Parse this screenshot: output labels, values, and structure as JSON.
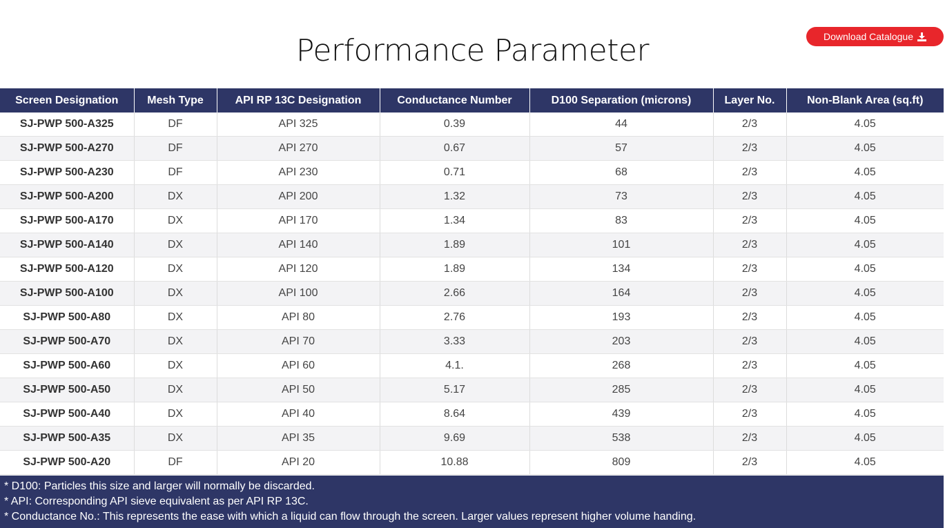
{
  "page": {
    "title": "Performance Parameter"
  },
  "download": {
    "label": "Download Catalogue",
    "icon": "download-icon",
    "color": "#e8262b"
  },
  "colors": {
    "header_bg": "#2e3666",
    "stripe_bg": "#f3f3f5"
  },
  "table": {
    "headers": [
      "Screen Designation",
      "Mesh Type",
      "API RP 13C Designation",
      "Conductance Number",
      "D100 Separation (microns)",
      "Layer No.",
      "Non-Blank Area (sq.ft)"
    ],
    "rows": [
      [
        "SJ-PWP 500-A325",
        "DF",
        "API 325",
        "0.39",
        "44",
        "2/3",
        "4.05"
      ],
      [
        "SJ-PWP 500-A270",
        "DF",
        "API 270",
        "0.67",
        "57",
        "2/3",
        "4.05"
      ],
      [
        "SJ-PWP 500-A230",
        "DF",
        "API 230",
        "0.71",
        "68",
        "2/3",
        "4.05"
      ],
      [
        "SJ-PWP 500-A200",
        "DX",
        "API 200",
        "1.32",
        "73",
        "2/3",
        "4.05"
      ],
      [
        "SJ-PWP 500-A170",
        "DX",
        "API 170",
        "1.34",
        "83",
        "2/3",
        "4.05"
      ],
      [
        "SJ-PWP 500-A140",
        "DX",
        "API 140",
        "1.89",
        "101",
        "2/3",
        "4.05"
      ],
      [
        "SJ-PWP 500-A120",
        "DX",
        "API 120",
        "1.89",
        "134",
        "2/3",
        "4.05"
      ],
      [
        "SJ-PWP 500-A100",
        "DX",
        "API 100",
        "2.66",
        "164",
        "2/3",
        "4.05"
      ],
      [
        "SJ-PWP 500-A80",
        "DX",
        "API 80",
        "2.76",
        "193",
        "2/3",
        "4.05"
      ],
      [
        "SJ-PWP 500-A70",
        "DX",
        "API 70",
        "3.33",
        "203",
        "2/3",
        "4.05"
      ],
      [
        "SJ-PWP 500-A60",
        "DX",
        "API 60",
        "4.1.",
        "268",
        "2/3",
        "4.05"
      ],
      [
        "SJ-PWP 500-A50",
        "DX",
        "API 50",
        "5.17",
        "285",
        "2/3",
        "4.05"
      ],
      [
        "SJ-PWP 500-A40",
        "DX",
        "API 40",
        "8.64",
        "439",
        "2/3",
        "4.05"
      ],
      [
        "SJ-PWP 500-A35",
        "DX",
        "API 35",
        "9.69",
        "538",
        "2/3",
        "4.05"
      ],
      [
        "SJ-PWP 500-A20",
        "DF",
        "API 20",
        "10.88",
        "809",
        "2/3",
        "4.05"
      ]
    ]
  },
  "notes": [
    "* D100: Particles this size and larger will normally be discarded.",
    "* API: Corresponding API sieve equivalent as per API RP 13C.",
    "* Conductance No.: This represents the ease with which a liquid can flow through the screen. Larger values represent higher volume handing."
  ]
}
